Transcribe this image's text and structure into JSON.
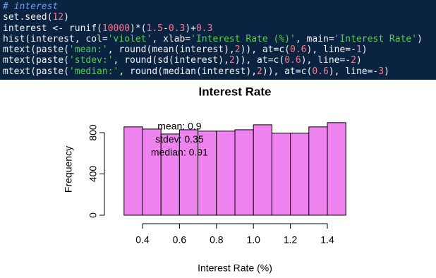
{
  "code": [
    "# interest",
    "set.seed(12)",
    "interest <- runif(10000)*(1.5-0.3)+0.3",
    "hist(interest, col='violet', xlab='Interest Rate (%)', main='Interest Rate')",
    "mtext(paste('mean:', round(mean(interest),2)), at=c(0.6), line=-1)",
    "mtext(paste('stdev:', round(sd(interest),2)), at=c(0.6), line=-2)",
    "mtext(paste('median:', round(median(interest),2)), at=c(0.6), line=-3)"
  ],
  "chart_data": {
    "type": "histogram",
    "title": "Interest Rate",
    "x_label": "Interest Rate (%)",
    "y_label": "Frequency",
    "bins": [
      0.3,
      0.4,
      0.5,
      0.6,
      0.7,
      0.8,
      0.9,
      1.0,
      1.1,
      1.2,
      1.3,
      1.4,
      1.5
    ],
    "counts": [
      856,
      835,
      787,
      828,
      815,
      815,
      828,
      876,
      795,
      795,
      856,
      897
    ],
    "color": "violet",
    "xlim": [
      0.4,
      1.4
    ],
    "xticks": [
      0.4,
      0.6,
      0.8,
      {
        "value": 1,
        "label": "1.0"
      },
      1.2,
      1.4
    ],
    "ylim": [
      0,
      800
    ],
    "yticks": [
      0,
      400,
      800
    ],
    "annotations": [
      {
        "text": "mean: 0.9",
        "x": 0.6
      },
      {
        "text": "stdev: 0.35",
        "x": 0.6
      },
      {
        "text": "median: 0.91",
        "x": 0.6
      }
    ]
  }
}
